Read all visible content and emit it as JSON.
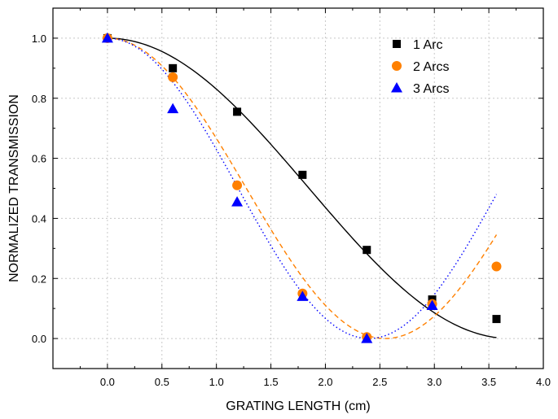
{
  "chart_data": {
    "type": "scatter",
    "title": "",
    "xlabel": "GRATING LENGTH (cm)",
    "ylabel": "NORMALIZED TRANSMISSION",
    "xlim": [
      -0.5,
      4.0
    ],
    "ylim": [
      -0.1,
      1.1
    ],
    "xticks": [
      "0.0",
      "0.5",
      "1.0",
      "1.5",
      "2.0",
      "2.5",
      "3.0",
      "3.5",
      "4.0"
    ],
    "yticks": [
      "0.0",
      "0.2",
      "0.4",
      "0.6",
      "0.8",
      "1.0"
    ],
    "grid": true,
    "legend_position": "top-right",
    "series": [
      {
        "name": "1 Arc",
        "marker": "square",
        "color": "#000000",
        "fit_style": "solid",
        "x": [
          0.0,
          0.6,
          1.19,
          1.79,
          2.38,
          2.98,
          3.57
        ],
        "y": [
          1.0,
          0.9,
          0.755,
          0.545,
          0.295,
          0.13,
          0.065
        ]
      },
      {
        "name": "2 Arcs",
        "marker": "circle",
        "color": "#ff8000",
        "fit_style": "dashed",
        "x": [
          0.0,
          0.6,
          1.19,
          1.79,
          2.38,
          2.98,
          3.57
        ],
        "y": [
          1.0,
          0.87,
          0.51,
          0.15,
          0.005,
          0.115,
          0.24
        ]
      },
      {
        "name": "3 Arcs",
        "marker": "triangle",
        "color": "#0000ff",
        "fit_style": "dotted",
        "x": [
          0.0,
          0.6,
          1.19,
          1.79,
          2.38,
          2.98
        ],
        "y": [
          1.0,
          0.765,
          0.455,
          0.14,
          0.0,
          0.11
        ]
      }
    ],
    "fits": [
      {
        "series": "1 Arc",
        "function": "cos^2",
        "period_half_cm": 3.7,
        "x_range": [
          0.0,
          3.57
        ]
      },
      {
        "series": "2 Arcs",
        "function": "cos^2",
        "period_half_cm": 2.55,
        "x_range": [
          0.0,
          3.57
        ]
      },
      {
        "series": "3 Arcs",
        "function": "cos^2",
        "period_half_cm": 2.4,
        "x_range": [
          0.0,
          3.57
        ]
      }
    ]
  }
}
